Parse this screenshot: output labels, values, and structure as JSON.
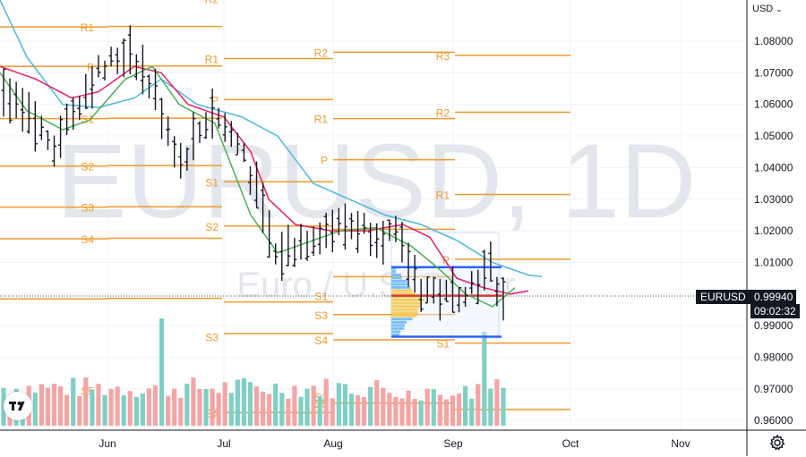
{
  "currency_button": {
    "label": "USD",
    "icon": "chevron-down-icon"
  },
  "watermark": {
    "symbol": "EURUSD, 1D",
    "description": "Euro / U.S. Dollar"
  },
  "price_tag": {
    "symbol": "EURUSD",
    "price": "0.99940",
    "countdown": "09:02:32"
  },
  "logo": {
    "icon": "tradingview-logo-icon"
  },
  "settings": {
    "icon": "gear-icon"
  },
  "colors": {
    "orange": "#ef9a2c",
    "ma_fast": "#e91e63",
    "ma_mid": "#4caf50",
    "ma_slow": "#4fb6e0",
    "vol_up": "#7fcfc4",
    "vol_down": "#f4a4a4",
    "blue": "#2962ff",
    "red": "#e53935"
  },
  "chart_data": {
    "type": "candlestick",
    "symbol": "EURUSD",
    "timeframe": "1D",
    "ylim": [
      0.958,
      1.094
    ],
    "y_ticks": [
      "1.08000",
      "1.07000",
      "1.06000",
      "1.05000",
      "1.04000",
      "1.03000",
      "1.02000",
      "1.01000",
      "1.00000",
      "0.99000",
      "0.98000",
      "0.97000",
      "0.96000"
    ],
    "x_ticks": [
      "Jun",
      "Jul",
      "Aug",
      "Sep",
      "Oct",
      "Nov"
    ],
    "last_price": 0.9994,
    "pivot_periods": [
      {
        "levels": [
          [
            "R2",
            1.096
          ],
          [
            "R1",
            1.0845
          ],
          [
            "P",
            1.072
          ],
          [
            "S1",
            1.0555
          ],
          [
            "S2",
            1.0405
          ],
          [
            "S3",
            1.0275
          ],
          [
            "S4",
            1.0175
          ],
          [
            "S5",
            0.9985
          ]
        ]
      },
      {
        "levels": [
          [
            "R2",
            1.0935
          ],
          [
            "R1",
            1.0745
          ],
          [
            "P",
            1.0615
          ],
          [
            "S1",
            1.0355
          ],
          [
            "S2",
            1.0215
          ],
          [
            "S3",
            0.9975
          ],
          [
            "S4",
            0.9875
          ],
          [
            "S5",
            0.9625
          ]
        ]
      },
      {
        "levels": [
          [
            "R2",
            1.0765
          ],
          [
            "R1",
            1.0555
          ],
          [
            "P",
            1.0425
          ],
          [
            "S1",
            1.0205
          ],
          [
            "S2",
            1.0055
          ],
          [
            "S3",
            0.9935
          ],
          [
            "S4",
            0.9855
          ],
          [
            "S5",
            0.9655
          ]
        ]
      },
      {
        "levels": [
          [
            "R3",
            1.0755
          ],
          [
            "R2",
            1.0575
          ],
          [
            "R1",
            1.0315
          ],
          [
            "P",
            1.011
          ],
          [
            "S1",
            0.9845
          ],
          [
            "S2",
            0.9635
          ]
        ]
      }
    ],
    "pivot_label_prices": {
      "0": {
        "S5": 0.9695
      },
      "1": {
        "S3": 0.9865,
        "S4": 0.9625
      },
      "2": {
        "S1": 0.9995,
        "S2": 0.9675
      },
      "3": {
        "S2": 0.9615
      }
    },
    "volume_profile": {
      "top": 1.0085,
      "poc": 0.9995,
      "bottom": 0.9865
    }
  }
}
